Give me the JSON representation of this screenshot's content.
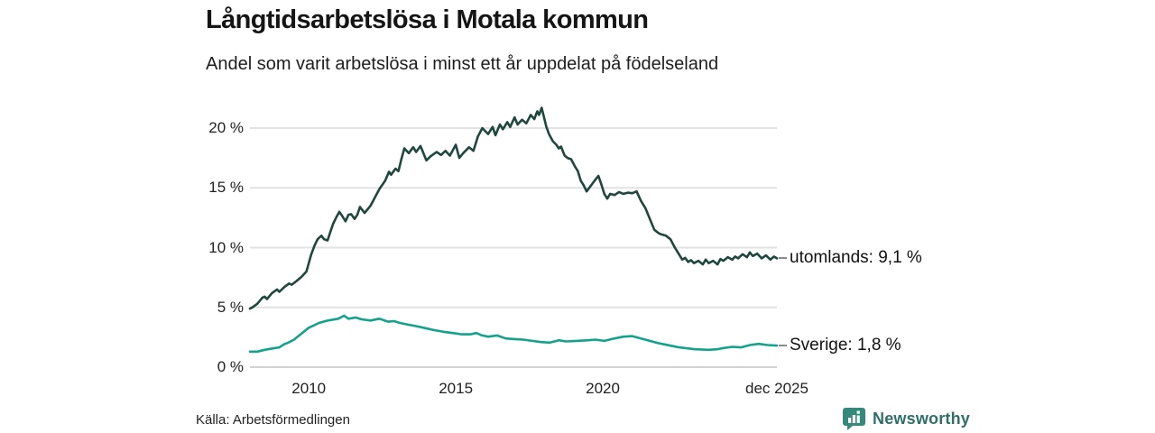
{
  "header": {
    "title": "Långtidsarbetslösa i Motala kommun",
    "subtitle": "Andel som varit arbetslösa i minst ett år uppdelat på födelseland"
  },
  "footer": {
    "source": "Källa: Arbetsförmedlingen",
    "brand": "Newsworthy"
  },
  "colors": {
    "series_utomlands": "#1f473d",
    "series_sverige": "#14a28c",
    "grid": "#e2e2e2",
    "axis_zero": "#d2d2d2",
    "tick_text": "#222222",
    "label_dash": "#8a8a8a",
    "brand_teal": "#35897b",
    "brand_text": "#2f6f68"
  },
  "chart_data": {
    "type": "line",
    "title": "Långtidsarbetslösa i Motala kommun",
    "subtitle": "Andel som varit arbetslösa i minst ett år uppdelat på födelseland",
    "x_unit": "decimal_year",
    "x_range": [
      2008.0,
      2025.92
    ],
    "y_range": [
      0,
      20
    ],
    "grid": true,
    "legend_position": "right-end-labels",
    "x_ticks": [
      {
        "x": 2010,
        "label": "2010"
      },
      {
        "x": 2015,
        "label": "2015"
      },
      {
        "x": 2020,
        "label": "2020"
      },
      {
        "x": 2025.92,
        "label": "dec 2025"
      }
    ],
    "y_ticks": [
      {
        "y": 20,
        "label": "20 %"
      },
      {
        "y": 15,
        "label": "15 %"
      },
      {
        "y": 10,
        "label": "10 %"
      },
      {
        "y": 5,
        "label": "5 %"
      },
      {
        "y": 0,
        "label": "0 %"
      }
    ],
    "series": [
      {
        "name": "utomlands",
        "end_label": "utomlands: 9,1 %",
        "end_value_text": "9,1 %",
        "points": [
          [
            2008.0,
            4.9
          ],
          [
            2008.08,
            5.0
          ],
          [
            2008.25,
            5.3
          ],
          [
            2008.42,
            5.8
          ],
          [
            2008.5,
            5.9
          ],
          [
            2008.58,
            5.7
          ],
          [
            2008.75,
            6.2
          ],
          [
            2008.92,
            6.5
          ],
          [
            2009.0,
            6.3
          ],
          [
            2009.17,
            6.7
          ],
          [
            2009.33,
            7.0
          ],
          [
            2009.42,
            6.9
          ],
          [
            2009.58,
            7.2
          ],
          [
            2009.75,
            7.55
          ],
          [
            2009.92,
            8.0
          ],
          [
            2010.0,
            8.7
          ],
          [
            2010.08,
            9.4
          ],
          [
            2010.2,
            10.2
          ],
          [
            2010.3,
            10.7
          ],
          [
            2010.43,
            11.0
          ],
          [
            2010.52,
            10.7
          ],
          [
            2010.64,
            10.6
          ],
          [
            2010.72,
            11.2
          ],
          [
            2010.83,
            12.0
          ],
          [
            2010.95,
            12.6
          ],
          [
            2011.04,
            13.0
          ],
          [
            2011.15,
            12.6
          ],
          [
            2011.25,
            12.2
          ],
          [
            2011.35,
            12.75
          ],
          [
            2011.44,
            12.8
          ],
          [
            2011.56,
            12.4
          ],
          [
            2011.65,
            12.75
          ],
          [
            2011.74,
            13.4
          ],
          [
            2011.9,
            12.9
          ],
          [
            2012.1,
            13.5
          ],
          [
            2012.25,
            14.2
          ],
          [
            2012.4,
            14.9
          ],
          [
            2012.6,
            15.6
          ],
          [
            2012.73,
            16.35
          ],
          [
            2012.8,
            16.1
          ],
          [
            2012.95,
            16.6
          ],
          [
            2013.05,
            16.4
          ],
          [
            2013.15,
            17.4
          ],
          [
            2013.25,
            18.3
          ],
          [
            2013.4,
            17.9
          ],
          [
            2013.55,
            18.4
          ],
          [
            2013.65,
            18.0
          ],
          [
            2013.8,
            18.5
          ],
          [
            2014.0,
            17.3
          ],
          [
            2014.15,
            17.65
          ],
          [
            2014.35,
            18.0
          ],
          [
            2014.5,
            17.75
          ],
          [
            2014.65,
            18.1
          ],
          [
            2014.8,
            17.7
          ],
          [
            2015.0,
            18.6
          ],
          [
            2015.12,
            17.5
          ],
          [
            2015.25,
            17.9
          ],
          [
            2015.45,
            18.4
          ],
          [
            2015.6,
            18.1
          ],
          [
            2015.75,
            19.3
          ],
          [
            2015.9,
            20.0
          ],
          [
            2016.1,
            19.5
          ],
          [
            2016.25,
            20.1
          ],
          [
            2016.35,
            19.4
          ],
          [
            2016.5,
            20.3
          ],
          [
            2016.6,
            19.9
          ],
          [
            2016.75,
            20.5
          ],
          [
            2016.85,
            20.1
          ],
          [
            2017.0,
            20.9
          ],
          [
            2017.1,
            20.3
          ],
          [
            2017.25,
            20.7
          ],
          [
            2017.4,
            20.4
          ],
          [
            2017.55,
            21.1
          ],
          [
            2017.67,
            20.75
          ],
          [
            2017.77,
            21.4
          ],
          [
            2017.83,
            21.1
          ],
          [
            2017.92,
            21.7
          ],
          [
            2018.0,
            20.9
          ],
          [
            2018.08,
            20.1
          ],
          [
            2018.17,
            19.5
          ],
          [
            2018.3,
            18.9
          ],
          [
            2018.42,
            18.6
          ],
          [
            2018.5,
            18.3
          ],
          [
            2018.58,
            18.45
          ],
          [
            2018.7,
            17.7
          ],
          [
            2018.8,
            17.5
          ],
          [
            2018.92,
            17.4
          ],
          [
            2019.05,
            16.8
          ],
          [
            2019.15,
            16.4
          ],
          [
            2019.25,
            15.6
          ],
          [
            2019.35,
            15.2
          ],
          [
            2019.45,
            14.7
          ],
          [
            2019.6,
            15.2
          ],
          [
            2019.75,
            15.7
          ],
          [
            2019.85,
            16.0
          ],
          [
            2019.95,
            15.3
          ],
          [
            2020.05,
            14.5
          ],
          [
            2020.15,
            14.1
          ],
          [
            2020.25,
            14.5
          ],
          [
            2020.4,
            14.4
          ],
          [
            2020.55,
            14.65
          ],
          [
            2020.7,
            14.5
          ],
          [
            2020.85,
            14.6
          ],
          [
            2021.0,
            14.55
          ],
          [
            2021.15,
            14.7
          ],
          [
            2021.3,
            13.9
          ],
          [
            2021.45,
            13.3
          ],
          [
            2021.6,
            12.4
          ],
          [
            2021.75,
            11.5
          ],
          [
            2021.9,
            11.2
          ],
          [
            2022.0,
            11.1
          ],
          [
            2022.15,
            11.0
          ],
          [
            2022.3,
            10.7
          ],
          [
            2022.45,
            10.0
          ],
          [
            2022.6,
            9.4
          ],
          [
            2022.7,
            9.0
          ],
          [
            2022.8,
            9.15
          ],
          [
            2022.9,
            8.8
          ],
          [
            2023.0,
            8.95
          ],
          [
            2023.1,
            8.7
          ],
          [
            2023.25,
            8.9
          ],
          [
            2023.4,
            8.6
          ],
          [
            2023.5,
            9.0
          ],
          [
            2023.6,
            8.7
          ],
          [
            2023.75,
            8.9
          ],
          [
            2023.9,
            8.6
          ],
          [
            2024.0,
            9.05
          ],
          [
            2024.1,
            8.9
          ],
          [
            2024.25,
            9.2
          ],
          [
            2024.4,
            9.0
          ],
          [
            2024.5,
            9.25
          ],
          [
            2024.6,
            9.1
          ],
          [
            2024.75,
            9.45
          ],
          [
            2024.9,
            9.2
          ],
          [
            2025.0,
            9.6
          ],
          [
            2025.1,
            9.3
          ],
          [
            2025.25,
            9.5
          ],
          [
            2025.4,
            9.1
          ],
          [
            2025.55,
            9.35
          ],
          [
            2025.7,
            9.0
          ],
          [
            2025.82,
            9.25
          ],
          [
            2025.92,
            9.1
          ]
        ]
      },
      {
        "name": "Sverige",
        "end_label": "Sverige: 1,8 %",
        "end_value_text": "1,8 %",
        "points": [
          [
            2008.0,
            1.3
          ],
          [
            2008.25,
            1.3
          ],
          [
            2008.5,
            1.45
          ],
          [
            2008.85,
            1.6
          ],
          [
            2009.0,
            1.65
          ],
          [
            2009.15,
            1.9
          ],
          [
            2009.3,
            2.05
          ],
          [
            2009.5,
            2.3
          ],
          [
            2009.75,
            2.8
          ],
          [
            2010.0,
            3.3
          ],
          [
            2010.35,
            3.7
          ],
          [
            2010.65,
            3.9
          ],
          [
            2011.0,
            4.05
          ],
          [
            2011.2,
            4.3
          ],
          [
            2011.35,
            4.05
          ],
          [
            2011.6,
            4.15
          ],
          [
            2011.8,
            4.0
          ],
          [
            2012.1,
            3.9
          ],
          [
            2012.4,
            4.05
          ],
          [
            2012.7,
            3.8
          ],
          [
            2012.9,
            3.85
          ],
          [
            2013.1,
            3.7
          ],
          [
            2013.4,
            3.55
          ],
          [
            2013.7,
            3.4
          ],
          [
            2013.9,
            3.3
          ],
          [
            2014.25,
            3.1
          ],
          [
            2014.6,
            2.95
          ],
          [
            2014.9,
            2.85
          ],
          [
            2015.2,
            2.75
          ],
          [
            2015.5,
            2.75
          ],
          [
            2015.7,
            2.85
          ],
          [
            2015.9,
            2.65
          ],
          [
            2016.1,
            2.55
          ],
          [
            2016.4,
            2.65
          ],
          [
            2016.7,
            2.4
          ],
          [
            2017.0,
            2.35
          ],
          [
            2017.3,
            2.3
          ],
          [
            2017.6,
            2.2
          ],
          [
            2017.9,
            2.1
          ],
          [
            2018.2,
            2.05
          ],
          [
            2018.5,
            2.25
          ],
          [
            2018.75,
            2.15
          ],
          [
            2019.1,
            2.2
          ],
          [
            2019.5,
            2.25
          ],
          [
            2019.75,
            2.3
          ],
          [
            2020.05,
            2.2
          ],
          [
            2020.3,
            2.35
          ],
          [
            2020.7,
            2.55
          ],
          [
            2021.0,
            2.6
          ],
          [
            2021.3,
            2.4
          ],
          [
            2021.6,
            2.2
          ],
          [
            2021.9,
            2.0
          ],
          [
            2022.1,
            1.9
          ],
          [
            2022.4,
            1.75
          ],
          [
            2022.6,
            1.65
          ],
          [
            2023.1,
            1.5
          ],
          [
            2023.6,
            1.45
          ],
          [
            2023.9,
            1.5
          ],
          [
            2024.1,
            1.6
          ],
          [
            2024.4,
            1.7
          ],
          [
            2024.7,
            1.65
          ],
          [
            2025.0,
            1.85
          ],
          [
            2025.3,
            1.95
          ],
          [
            2025.6,
            1.85
          ],
          [
            2025.92,
            1.8
          ]
        ]
      }
    ]
  }
}
